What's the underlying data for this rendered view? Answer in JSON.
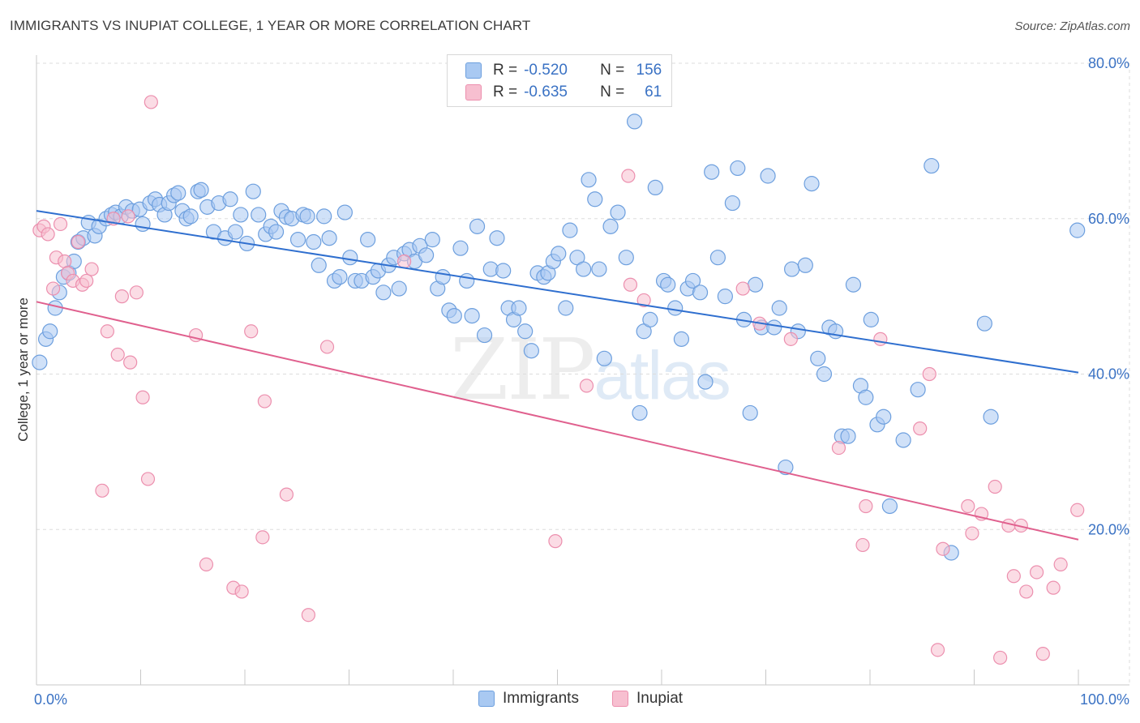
{
  "header": {
    "title": "IMMIGRANTS VS INUPIAT COLLEGE, 1 YEAR OR MORE CORRELATION CHART",
    "source": "Source: ZipAtlas.com"
  },
  "legend": {
    "rows": [
      {
        "r_label": "R =",
        "r_value": "-0.520",
        "n_label": "N =",
        "n_value": "156"
      },
      {
        "r_label": "R =",
        "r_value": "-0.635",
        "n_label": "N =",
        "n_value": "61"
      }
    ]
  },
  "bottom_legend": {
    "immigrants": "Immigrants",
    "inupiat": "Inupiat"
  },
  "watermark": {
    "zip": "ZIP",
    "atlas": "atlas"
  },
  "colors": {
    "immigrants_fill": "#a9c9f2",
    "immigrants_stroke": "#6d9fde",
    "immigrants_line": "#2f6fcf",
    "inupiat_fill": "#f7bfd0",
    "inupiat_stroke": "#ec8fae",
    "inupiat_line": "#e0608e",
    "grid": "#dddddd",
    "tick_text": "#3a72c4"
  },
  "chart_data": {
    "type": "scatter",
    "title": "IMMIGRANTS VS INUPIAT COLLEGE, 1 YEAR OR MORE CORRELATION CHART",
    "ylabel": "College, 1 year or more",
    "xlabel": "",
    "xlim": [
      0,
      100
    ],
    "ylim": [
      0,
      80
    ],
    "x_tick_labels": [
      "0.0%",
      "100.0%"
    ],
    "y_ticks": [
      20,
      40,
      60,
      80
    ],
    "y_tick_labels": [
      "20.0%",
      "40.0%",
      "60.0%",
      "80.0%"
    ],
    "grid": true,
    "legend_position": "top-center",
    "series": [
      {
        "name": "Immigrants",
        "trend": {
          "x": [
            0,
            100
          ],
          "y": [
            61.0,
            40.2
          ]
        },
        "points": [
          [
            0.3,
            41.5
          ],
          [
            0.9,
            44.5
          ],
          [
            1.3,
            45.5
          ],
          [
            1.8,
            48.5
          ],
          [
            2.2,
            50.5
          ],
          [
            2.6,
            52.5
          ],
          [
            3.1,
            53.0
          ],
          [
            3.6,
            54.5
          ],
          [
            4.0,
            57.0
          ],
          [
            4.5,
            57.5
          ],
          [
            5.0,
            59.5
          ],
          [
            5.6,
            57.8
          ],
          [
            6.0,
            59.0
          ],
          [
            6.7,
            60.0
          ],
          [
            7.2,
            60.5
          ],
          [
            7.6,
            60.8
          ],
          [
            8.1,
            60.3
          ],
          [
            8.6,
            61.5
          ],
          [
            9.2,
            61.0
          ],
          [
            9.9,
            61.2
          ],
          [
            10.2,
            59.3
          ],
          [
            10.9,
            62.0
          ],
          [
            11.4,
            62.5
          ],
          [
            11.8,
            61.8
          ],
          [
            12.3,
            60.5
          ],
          [
            12.7,
            62.0
          ],
          [
            13.2,
            63.0
          ],
          [
            13.6,
            63.3
          ],
          [
            14.0,
            61.0
          ],
          [
            14.4,
            60.0
          ],
          [
            14.8,
            60.3
          ],
          [
            15.5,
            63.5
          ],
          [
            15.8,
            63.7
          ],
          [
            16.4,
            61.5
          ],
          [
            17.0,
            58.3
          ],
          [
            17.5,
            62.0
          ],
          [
            18.1,
            57.5
          ],
          [
            18.6,
            62.5
          ],
          [
            19.1,
            58.3
          ],
          [
            19.6,
            60.5
          ],
          [
            20.2,
            56.8
          ],
          [
            20.8,
            63.5
          ],
          [
            21.3,
            60.5
          ],
          [
            22.0,
            58.0
          ],
          [
            22.5,
            59.0
          ],
          [
            23.0,
            58.3
          ],
          [
            23.5,
            61.0
          ],
          [
            24.0,
            60.2
          ],
          [
            24.5,
            60.0
          ],
          [
            25.1,
            57.3
          ],
          [
            25.6,
            60.5
          ],
          [
            26.0,
            60.3
          ],
          [
            26.6,
            57.0
          ],
          [
            27.1,
            54.0
          ],
          [
            27.6,
            60.3
          ],
          [
            28.1,
            57.5
          ],
          [
            28.6,
            52.0
          ],
          [
            29.1,
            52.5
          ],
          [
            29.6,
            60.8
          ],
          [
            30.1,
            55.0
          ],
          [
            30.6,
            52.0
          ],
          [
            31.2,
            52.0
          ],
          [
            31.8,
            57.3
          ],
          [
            32.3,
            52.5
          ],
          [
            32.8,
            53.3
          ],
          [
            33.3,
            50.5
          ],
          [
            33.8,
            54.0
          ],
          [
            34.3,
            55.0
          ],
          [
            34.8,
            51.0
          ],
          [
            35.3,
            55.5
          ],
          [
            35.8,
            56.0
          ],
          [
            36.3,
            54.5
          ],
          [
            36.8,
            56.5
          ],
          [
            37.4,
            55.3
          ],
          [
            38.0,
            57.3
          ],
          [
            38.5,
            51.0
          ],
          [
            39.0,
            52.5
          ],
          [
            39.6,
            48.2
          ],
          [
            40.1,
            47.5
          ],
          [
            40.7,
            56.2
          ],
          [
            41.3,
            52.0
          ],
          [
            41.8,
            47.5
          ],
          [
            42.3,
            59.0
          ],
          [
            43.0,
            45.0
          ],
          [
            43.6,
            53.5
          ],
          [
            44.2,
            57.5
          ],
          [
            44.8,
            53.3
          ],
          [
            45.3,
            48.5
          ],
          [
            45.8,
            47.0
          ],
          [
            46.3,
            48.5
          ],
          [
            46.9,
            45.5
          ],
          [
            47.5,
            43.0
          ],
          [
            48.1,
            53.0
          ],
          [
            48.7,
            52.5
          ],
          [
            49.1,
            53.0
          ],
          [
            49.6,
            54.5
          ],
          [
            50.1,
            55.5
          ],
          [
            50.8,
            48.5
          ],
          [
            51.2,
            58.5
          ],
          [
            51.9,
            55.0
          ],
          [
            52.5,
            53.5
          ],
          [
            53.0,
            65.0
          ],
          [
            53.6,
            62.5
          ],
          [
            54.0,
            53.5
          ],
          [
            54.5,
            42.0
          ],
          [
            55.1,
            59.0
          ],
          [
            55.8,
            60.8
          ],
          [
            56.6,
            55.0
          ],
          [
            57.4,
            72.5
          ],
          [
            57.9,
            35.0
          ],
          [
            58.3,
            45.5
          ],
          [
            58.9,
            47.0
          ],
          [
            59.4,
            64.0
          ],
          [
            60.2,
            52.0
          ],
          [
            60.6,
            51.5
          ],
          [
            61.3,
            48.5
          ],
          [
            61.9,
            44.5
          ],
          [
            62.5,
            51.0
          ],
          [
            63.0,
            52.0
          ],
          [
            63.7,
            50.5
          ],
          [
            64.2,
            39.0
          ],
          [
            64.8,
            66.0
          ],
          [
            65.4,
            55.0
          ],
          [
            66.1,
            50.0
          ],
          [
            66.8,
            62.0
          ],
          [
            67.3,
            66.5
          ],
          [
            67.9,
            47.0
          ],
          [
            68.5,
            35.0
          ],
          [
            69.0,
            51.5
          ],
          [
            69.6,
            46.0
          ],
          [
            70.2,
            65.5
          ],
          [
            70.8,
            46.0
          ],
          [
            71.3,
            48.5
          ],
          [
            71.9,
            28.0
          ],
          [
            72.5,
            53.5
          ],
          [
            73.1,
            45.5
          ],
          [
            73.8,
            54.0
          ],
          [
            74.4,
            64.5
          ],
          [
            75.0,
            42.0
          ],
          [
            75.6,
            40.0
          ],
          [
            76.1,
            46.0
          ],
          [
            76.7,
            45.5
          ],
          [
            77.3,
            32.0
          ],
          [
            77.9,
            32.0
          ],
          [
            78.4,
            51.5
          ],
          [
            79.1,
            38.5
          ],
          [
            79.6,
            37.0
          ],
          [
            80.1,
            47.0
          ],
          [
            80.7,
            33.5
          ],
          [
            81.3,
            34.5
          ],
          [
            81.9,
            23.0
          ],
          [
            83.2,
            31.5
          ],
          [
            84.6,
            38.0
          ],
          [
            85.9,
            66.8
          ],
          [
            87.8,
            17.0
          ],
          [
            91.0,
            46.5
          ],
          [
            91.6,
            34.5
          ],
          [
            99.9,
            58.5
          ]
        ]
      },
      {
        "name": "Inupiat",
        "trend": {
          "x": [
            0,
            100
          ],
          "y": [
            49.3,
            18.7
          ]
        },
        "points": [
          [
            0.3,
            58.5
          ],
          [
            0.7,
            59.0
          ],
          [
            1.1,
            58.0
          ],
          [
            1.6,
            51.0
          ],
          [
            1.9,
            55.0
          ],
          [
            2.3,
            59.3
          ],
          [
            2.7,
            54.5
          ],
          [
            3.0,
            53.0
          ],
          [
            3.5,
            52.0
          ],
          [
            4.0,
            57.0
          ],
          [
            4.4,
            51.5
          ],
          [
            4.8,
            52.0
          ],
          [
            5.3,
            53.5
          ],
          [
            6.3,
            25.0
          ],
          [
            6.8,
            45.5
          ],
          [
            7.4,
            60.0
          ],
          [
            7.8,
            42.5
          ],
          [
            8.2,
            50.0
          ],
          [
            8.8,
            60.3
          ],
          [
            9.0,
            41.5
          ],
          [
            9.6,
            50.5
          ],
          [
            10.2,
            37.0
          ],
          [
            10.7,
            26.5
          ],
          [
            11.0,
            75.0
          ],
          [
            15.3,
            45.0
          ],
          [
            16.3,
            15.5
          ],
          [
            18.9,
            12.5
          ],
          [
            19.7,
            12.0
          ],
          [
            20.6,
            45.5
          ],
          [
            21.7,
            19.0
          ],
          [
            21.9,
            36.5
          ],
          [
            24.0,
            24.5
          ],
          [
            26.1,
            9.0
          ],
          [
            27.9,
            43.5
          ],
          [
            35.3,
            54.5
          ],
          [
            49.8,
            18.5
          ],
          [
            52.8,
            38.5
          ],
          [
            56.8,
            65.5
          ],
          [
            57.0,
            51.5
          ],
          [
            58.3,
            49.5
          ],
          [
            67.8,
            51.0
          ],
          [
            69.4,
            46.5
          ],
          [
            72.4,
            44.5
          ],
          [
            77.0,
            30.5
          ],
          [
            79.3,
            18.0
          ],
          [
            79.6,
            23.0
          ],
          [
            81.0,
            44.5
          ],
          [
            84.8,
            33.0
          ],
          [
            85.7,
            40.0
          ],
          [
            86.5,
            4.5
          ],
          [
            87.0,
            17.5
          ],
          [
            89.4,
            23.0
          ],
          [
            89.8,
            19.5
          ],
          [
            90.7,
            22.0
          ],
          [
            92.0,
            25.5
          ],
          [
            92.5,
            3.5
          ],
          [
            93.3,
            20.5
          ],
          [
            93.8,
            14.0
          ],
          [
            94.5,
            20.5
          ],
          [
            95.0,
            12.0
          ],
          [
            96.0,
            14.5
          ],
          [
            96.6,
            4.0
          ],
          [
            97.6,
            12.5
          ],
          [
            98.3,
            15.5
          ],
          [
            99.9,
            22.5
          ]
        ]
      }
    ]
  }
}
